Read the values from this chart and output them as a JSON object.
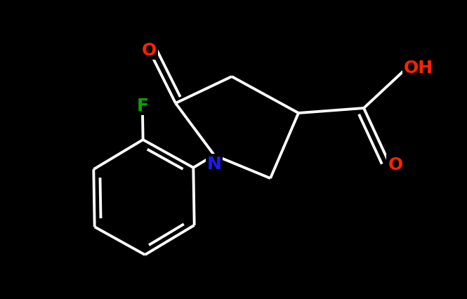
{
  "background_color": "#000000",
  "bond_color": "#ffffff",
  "bond_width": 2.8,
  "figsize": [
    6.65,
    4.27
  ],
  "dpi": 100,
  "colors": {
    "O": "#ff2200",
    "N": "#1a1aff",
    "F": "#00aa00",
    "C": "#ffffff"
  },
  "font_size": 18
}
